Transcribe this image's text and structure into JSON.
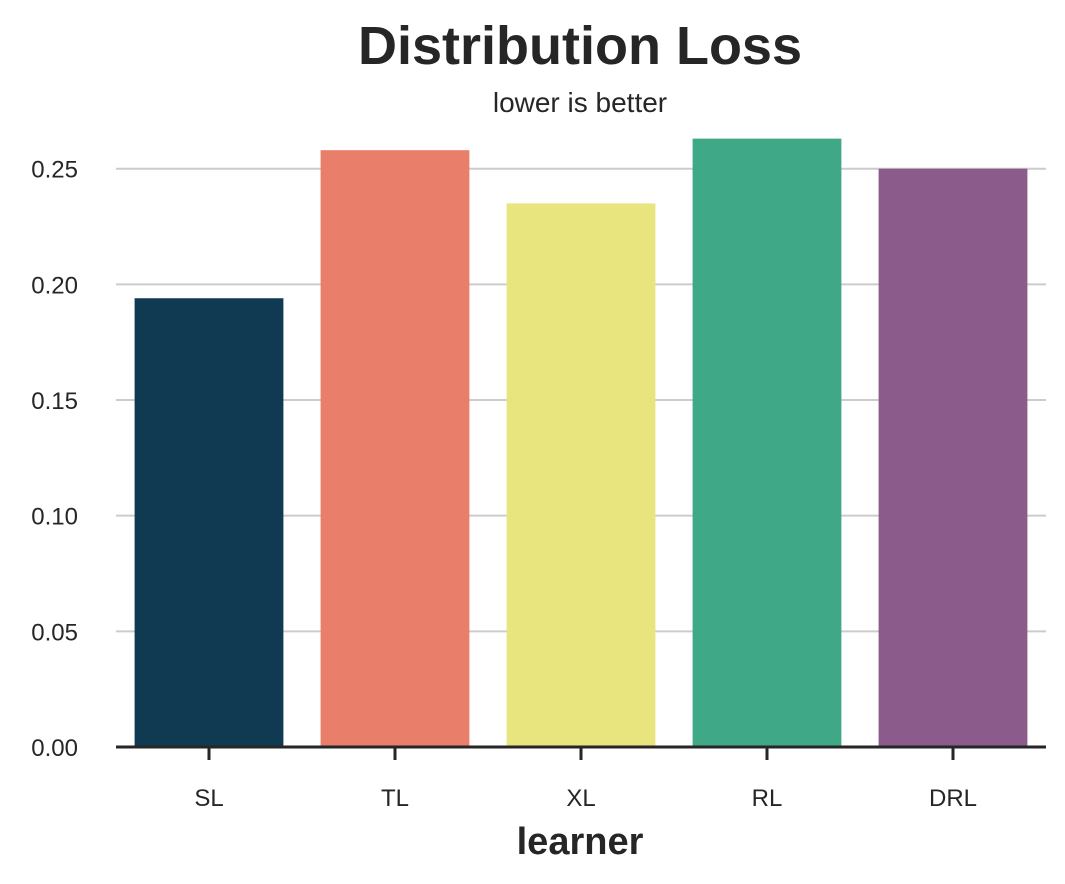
{
  "chart_data": {
    "type": "bar",
    "title": "Distribution Loss",
    "subtitle": "lower is better",
    "xlabel": "learner",
    "ylabel": "",
    "categories": [
      "SL",
      "TL",
      "XL",
      "RL",
      "DRL"
    ],
    "values": [
      0.194,
      0.258,
      0.235,
      0.263,
      0.25
    ],
    "colors": [
      "#0f3a51",
      "#e97e6b",
      "#e8e57f",
      "#3fa886",
      "#8b5b8b"
    ],
    "ylim": [
      0,
      0.265
    ],
    "yticks": [
      0.0,
      0.05,
      0.1,
      0.15,
      0.2,
      0.25
    ],
    "ytick_labels": [
      "0.00",
      "0.05",
      "0.10",
      "0.15",
      "0.20",
      "0.25"
    ],
    "grid": "horizontal",
    "legend": "none"
  }
}
